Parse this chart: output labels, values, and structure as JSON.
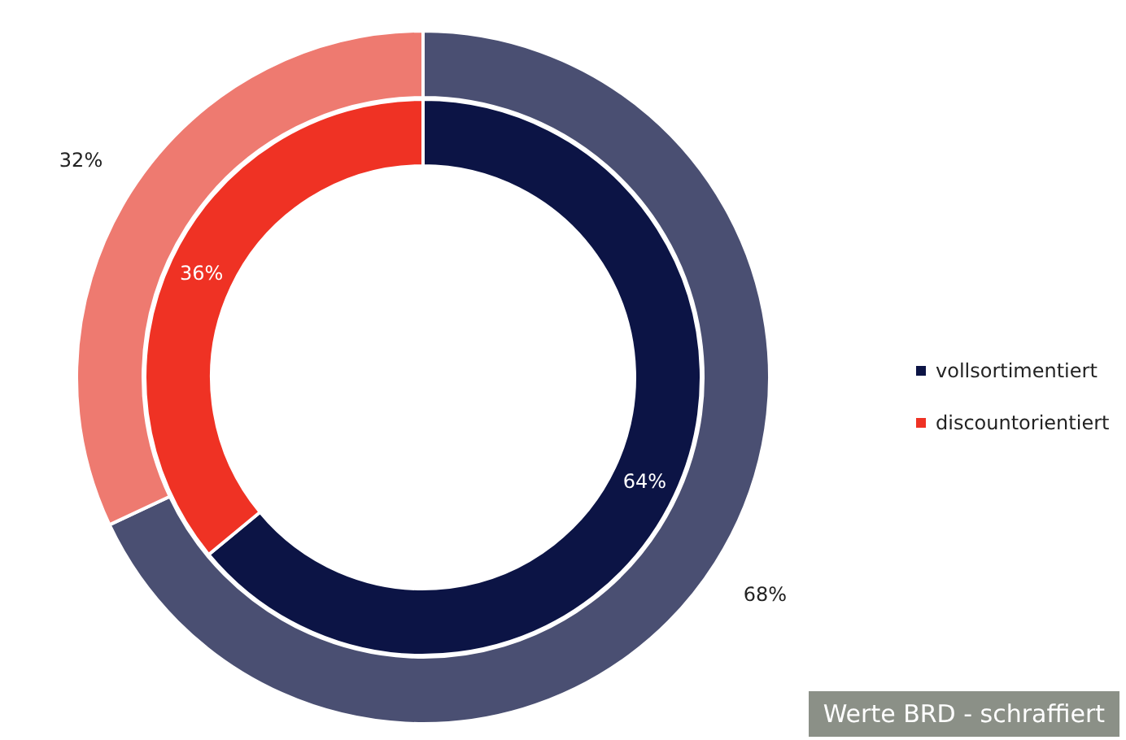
{
  "chart_data": {
    "type": "donut",
    "categories": [
      "vollsortimentiert",
      "discountorientiert"
    ],
    "series": [
      {
        "values": [
          64,
          36
        ],
        "colors": [
          "#0c1445",
          "#ef3224"
        ],
        "value_labels": [
          "64%",
          "36%"
        ]
      },
      {
        "values": [
          68,
          32
        ],
        "colors": [
          "#4a4f72",
          "#ee7a70"
        ],
        "value_labels": [
          "68%",
          "32%"
        ]
      }
    ],
    "legend": "right",
    "annotations": [
      "Werte BRD - schraffiert"
    ]
  }
}
